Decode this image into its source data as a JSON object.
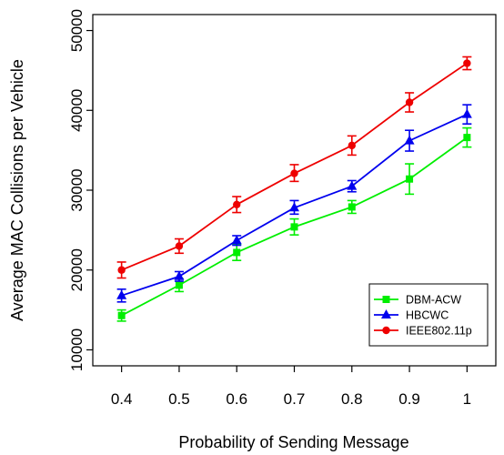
{
  "chart_data": {
    "type": "line",
    "xlabel": "Probability of Sending Message",
    "ylabel": "Average MAC Collisions per Vehicle",
    "x": [
      0.4,
      0.5,
      0.6,
      0.7,
      0.8,
      0.9,
      1
    ],
    "x_tick_labels": [
      "0.4",
      "0.5",
      "0.6",
      "0.7",
      "0.8",
      "0.9",
      "1"
    ],
    "xlim": [
      0.35,
      1.05
    ],
    "ylim": [
      8000,
      52000
    ],
    "y_ticks": [
      10000,
      20000,
      30000,
      40000,
      50000
    ],
    "y_tick_labels": [
      "10000",
      "20000",
      "30000",
      "40000",
      "50000"
    ],
    "grid": false,
    "legend_position": "bottom-right",
    "series": [
      {
        "name": "DBM-ACW",
        "color": "#00ee00",
        "marker": "square",
        "values": [
          14300,
          18100,
          22200,
          25400,
          27900,
          31400,
          36600
        ],
        "err_low": [
          13600,
          17300,
          21200,
          24400,
          27100,
          29500,
          35400
        ],
        "err_high": [
          15000,
          18900,
          23200,
          26400,
          28700,
          33300,
          37800
        ]
      },
      {
        "name": "HBCWC",
        "color": "#0000ee",
        "marker": "triangle",
        "values": [
          16800,
          19200,
          23700,
          27800,
          30500,
          36200,
          39500
        ],
        "err_low": [
          16000,
          18600,
          23100,
          27000,
          29800,
          34900,
          38300
        ],
        "err_high": [
          17600,
          19800,
          24300,
          28700,
          31200,
          37500,
          40700
        ]
      },
      {
        "name": "IEEE802.11p",
        "color": "#ee0000",
        "marker": "circle",
        "values": [
          20000,
          23000,
          28200,
          32100,
          35600,
          41000,
          45900
        ],
        "err_low": [
          19000,
          22100,
          27200,
          31100,
          34400,
          39800,
          45100
        ],
        "err_high": [
          21000,
          23900,
          29200,
          33200,
          36800,
          42200,
          46700
        ]
      }
    ]
  }
}
